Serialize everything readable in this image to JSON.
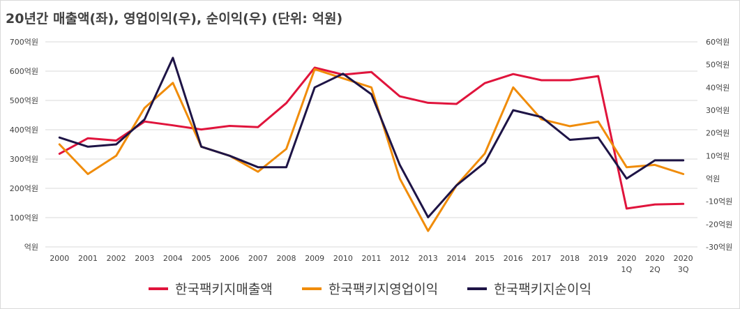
{
  "chart_data": {
    "type": "line",
    "title": "20년간 매출액(좌), 영업이익(우), 순이익(우) (단위: 억원)",
    "categories": [
      [
        "2000"
      ],
      [
        "2001"
      ],
      [
        "2002"
      ],
      [
        "2003"
      ],
      [
        "2004"
      ],
      [
        "2005"
      ],
      [
        "2006"
      ],
      [
        "2007"
      ],
      [
        "2008"
      ],
      [
        "2009"
      ],
      [
        "2010"
      ],
      [
        "2011"
      ],
      [
        "2012"
      ],
      [
        "2013"
      ],
      [
        "2014"
      ],
      [
        "2015"
      ],
      [
        "2016"
      ],
      [
        "2017"
      ],
      [
        "2018"
      ],
      [
        "2019"
      ],
      [
        "2020",
        "1Q"
      ],
      [
        "2020",
        "2Q"
      ],
      [
        "2020",
        "3Q"
      ]
    ],
    "y_left": {
      "ticks": [
        "700억원",
        "600억원",
        "500억원",
        "400억원",
        "300억원",
        "200억원",
        "100억원",
        "억원"
      ],
      "ylim": [
        0,
        700
      ]
    },
    "y_right": {
      "ticks": [
        "60억원",
        "50억원",
        "40억원",
        "30억원",
        "20억원",
        "10억원",
        "억원",
        "-10억원",
        "-20억원",
        "-30억원"
      ],
      "ylim": [
        -30,
        60
      ]
    },
    "grid": true,
    "legend_position": "bottom",
    "series": [
      {
        "name": "한국팩키지매출액",
        "axis": "left",
        "color": "#e0143c",
        "values": [
          318,
          371,
          363,
          428,
          415,
          401,
          413,
          409,
          491,
          612,
          588,
          597,
          514,
          492,
          488,
          559,
          590,
          569,
          569,
          583,
          131,
          145,
          147
        ]
      },
      {
        "name": "한국팩키지영업이익",
        "axis": "right",
        "color": "#f08c0a",
        "values": [
          15,
          2,
          10,
          31,
          42,
          14,
          10,
          3,
          13,
          48,
          44,
          40,
          0,
          -23,
          -3,
          11,
          40,
          26,
          23,
          25,
          5,
          6,
          2
        ]
      },
      {
        "name": "한국팩키지순이익",
        "axis": "right",
        "color": "#1e1446",
        "values": [
          18,
          14,
          15,
          26,
          53,
          14,
          10,
          5,
          5,
          40,
          46,
          37,
          6,
          -17,
          -3,
          7,
          30,
          27,
          17,
          18,
          0,
          8,
          8
        ]
      }
    ]
  }
}
